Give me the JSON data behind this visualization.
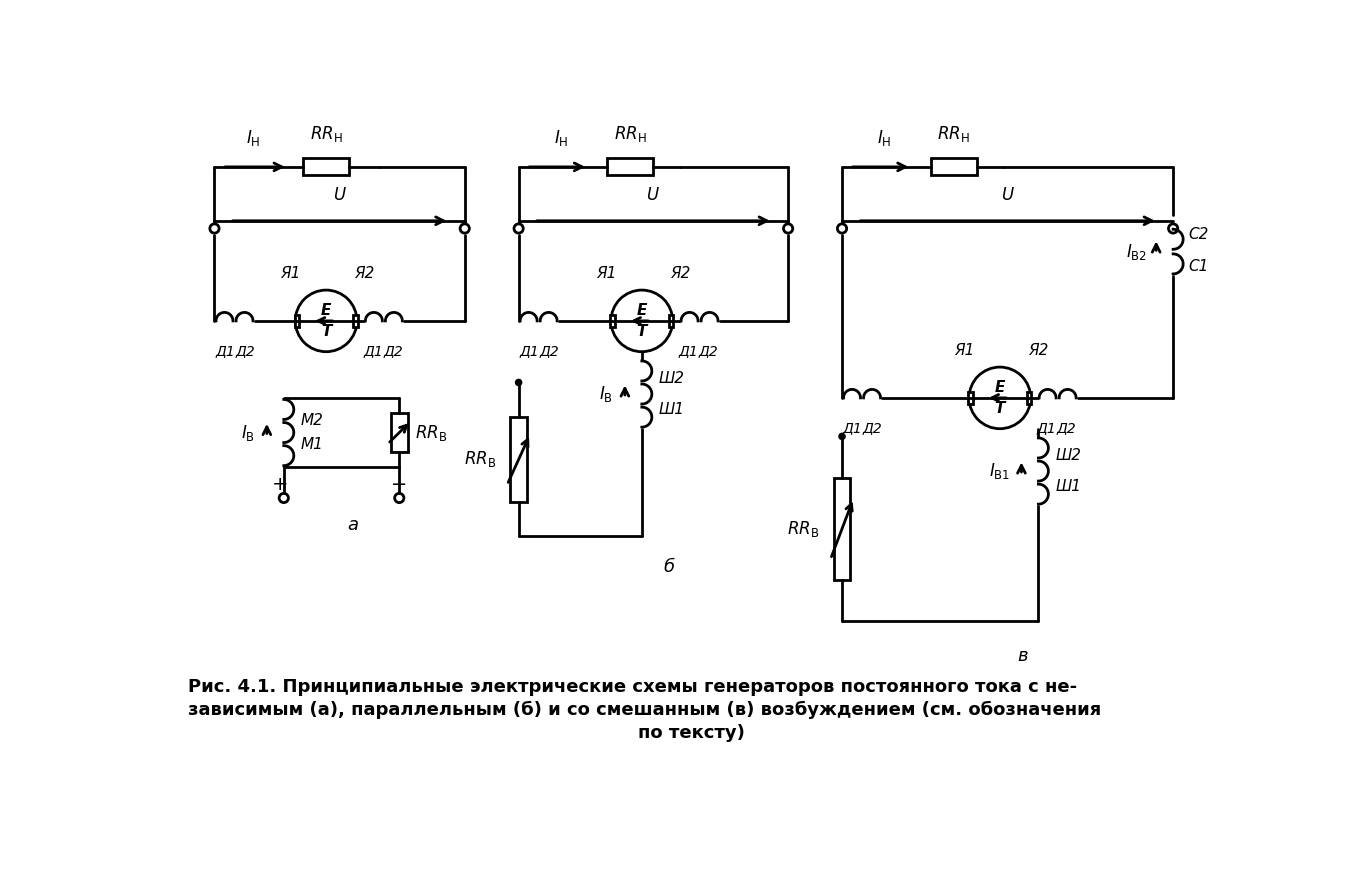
{
  "caption_line1": "Рис. 4.1. Принципиальные электрические схемы генераторов постоянного тока с не-",
  "caption_line2": "зависимым (а), параллельным (б) и со смешанным (в) возбуждением (см. обозначения",
  "caption_line3": "по тексту)",
  "bg_color": "#ffffff",
  "line_color": "#000000",
  "line_width": 2.0,
  "font_size": 12
}
